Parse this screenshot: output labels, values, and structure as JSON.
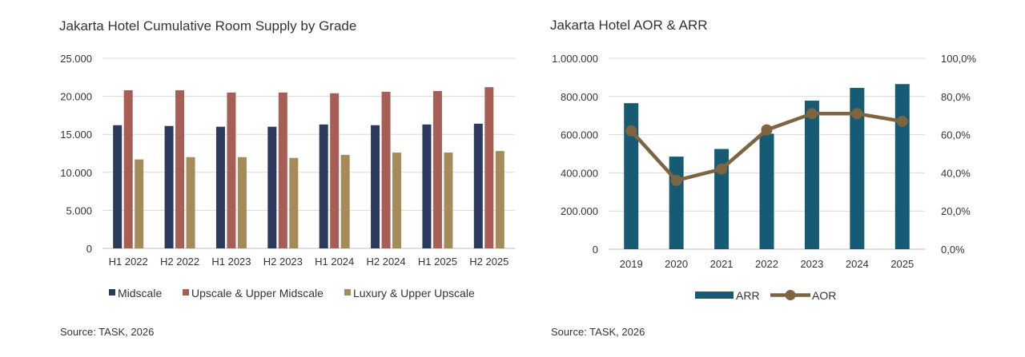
{
  "chart_data": [
    {
      "type": "bar",
      "title": "Jakarta Hotel Cumulative Room Supply by Grade",
      "categories": [
        "H1 2022",
        "H2 2022",
        "H1 2023",
        "H2 2023",
        "H1 2024",
        "H2 2024",
        "H1 2025",
        "H2 2025"
      ],
      "series": [
        {
          "name": "Midscale",
          "color": "#2c3a5e",
          "values": [
            16200,
            16100,
            16000,
            16000,
            16300,
            16200,
            16300,
            16400
          ]
        },
        {
          "name": "Upscale & Upper Midscale",
          "color": "#a65e55",
          "values": [
            20800,
            20800,
            20500,
            20500,
            20400,
            20600,
            20700,
            21200
          ]
        },
        {
          "name": "Luxury & Upper Upscale",
          "color": "#a58b5a",
          "values": [
            11700,
            12000,
            12000,
            11900,
            12300,
            12600,
            12600,
            12800
          ]
        }
      ],
      "ylim": [
        0,
        25000
      ],
      "yticks": [
        "0",
        "5.000",
        "10.000",
        "15.000",
        "20.000",
        "25.000"
      ],
      "grid": true,
      "legend": "bottom",
      "source": "Source: TASK, 2026"
    },
    {
      "type": "bar",
      "title": "Jakarta Hotel AOR & ARR",
      "categories": [
        "2019",
        "2020",
        "2021",
        "2022",
        "2023",
        "2024",
        "2025"
      ],
      "series": [
        {
          "name": "ARR",
          "type": "bar",
          "axis": "left",
          "color": "#175a74",
          "values": [
            765000,
            485000,
            525000,
            605000,
            778000,
            845000,
            865000
          ]
        },
        {
          "name": "AOR",
          "type": "line",
          "axis": "right",
          "color": "#7d6542",
          "values": [
            62.0,
            36.0,
            42.0,
            62.5,
            71.0,
            71.0,
            67.0
          ]
        }
      ],
      "ylim": [
        0,
        1000000
      ],
      "yticks": [
        "0",
        "200.000",
        "400.000",
        "600.000",
        "800.000",
        "1.000.000"
      ],
      "y2lim": [
        0,
        100
      ],
      "y2ticks": [
        "0,0%",
        "20,0%",
        "40,0%",
        "60,0%",
        "80,0%",
        "100,0%"
      ],
      "grid": true,
      "legend": "bottom",
      "source": "Source: TASK, 2026"
    }
  ]
}
